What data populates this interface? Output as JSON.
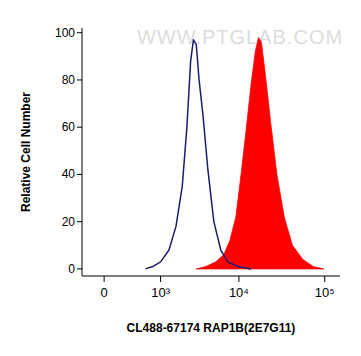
{
  "chart_data": {
    "type": "area",
    "x_label": "CL488-67174 RAP1B(2E7G11)",
    "y_label": "Relative Cell Number",
    "watermark": "WWW.PTGLAB.COM",
    "log": "x",
    "xlim": [
      -230,
      150000
    ],
    "xticks": [
      0,
      {
        "value": 1000,
        "label": "10³"
      },
      {
        "value": 10000,
        "label": "10⁴"
      },
      {
        "value": 100000,
        "label": "10⁵"
      }
    ],
    "ylim": [
      -3,
      102
    ],
    "yticks": [
      0,
      20,
      40,
      60,
      80,
      100
    ],
    "grid": false,
    "series": [
      {
        "type": "line",
        "color": "#1c1c6e",
        "x": [
          575,
          758,
          1000,
          1320,
          1650,
          2000,
          2300,
          2570,
          2790,
          3030,
          3290,
          3680,
          4230,
          5000,
          6070,
          7360,
          9700,
          13900
        ],
        "values": [
          0,
          1,
          3,
          8,
          18,
          35,
          60,
          88,
          97,
          95,
          80,
          65,
          42,
          20,
          8,
          3,
          1,
          0
        ]
      },
      {
        "type": "area",
        "color": "#ff0000",
        "x": [
          3030,
          4000,
          5280,
          6590,
          7800,
          9200,
          10600,
          12100,
          13900,
          15600,
          17000,
          18400,
          20500,
          23600,
          27900,
          33900,
          42200,
          55700,
          73600,
          97200
        ],
        "values": [
          0,
          1,
          3,
          6,
          12,
          22,
          40,
          58,
          78,
          92,
          98,
          96,
          82,
          62,
          40,
          22,
          10,
          4,
          1,
          0
        ]
      }
    ]
  }
}
